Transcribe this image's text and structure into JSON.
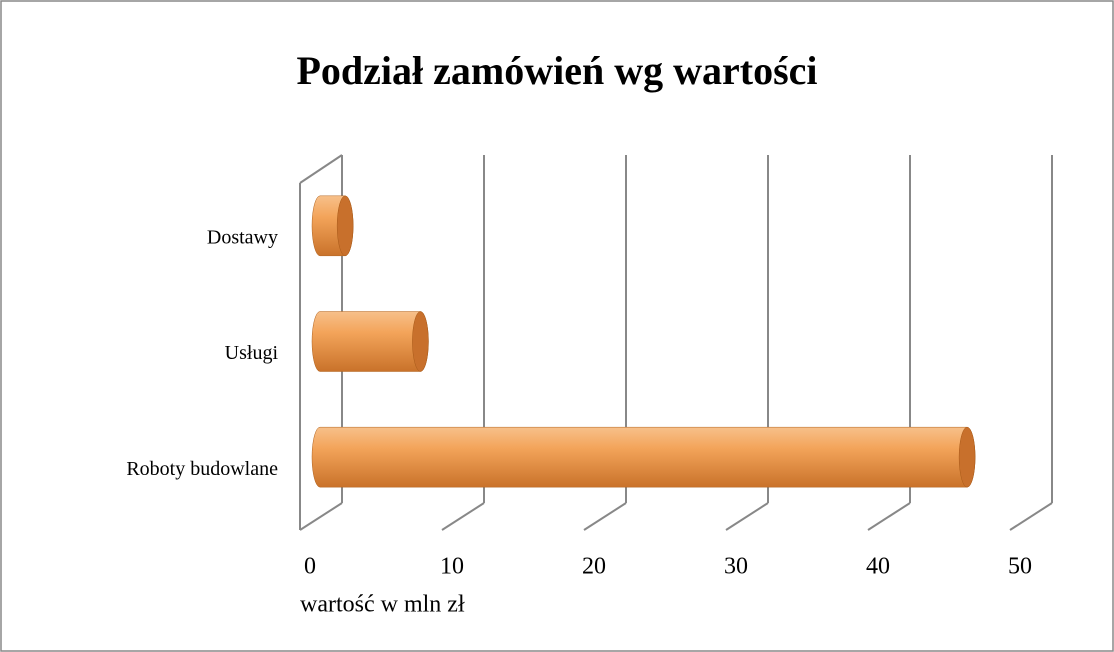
{
  "chart_data": {
    "type": "bar",
    "orientation": "horizontal",
    "title": "Podział zamówień wg wartości",
    "categories": [
      "Roboty budowlane",
      "Usługi",
      "Dostawy"
    ],
    "values": [
      45.5,
      7,
      1.7
    ],
    "color": "#f0a050",
    "xlabel": "wartość w mln zł",
    "xlim": [
      0,
      50
    ],
    "xticks": [
      0,
      10,
      20,
      30,
      40,
      50
    ],
    "grid": true
  }
}
